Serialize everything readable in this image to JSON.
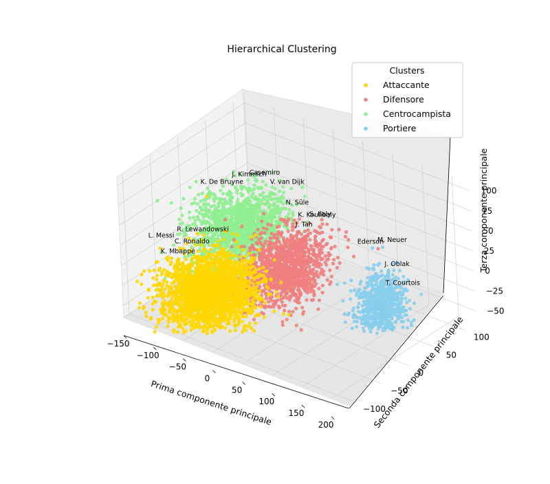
{
  "chart_data": {
    "type": "scatter",
    "title": "Hierarchical Clustering",
    "xlabel": "Prima componente principale",
    "ylabel": "Seconda componente principale",
    "zlabel": "Terza componente principale",
    "xticks": [
      "−150",
      "−100",
      "−50",
      "0",
      "50",
      "100",
      "150",
      "200"
    ],
    "yticks": [
      "−100",
      "−50",
      "0",
      "50",
      "100"
    ],
    "zticks": [
      "−50",
      "−25",
      "0",
      "25",
      "50",
      "75",
      "100"
    ],
    "xlim": [
      -150,
      230
    ],
    "ylim": [
      -110,
      120
    ],
    "zlim": [
      -65,
      110
    ],
    "legend": {
      "title": "Clusters",
      "position": "top-right",
      "entries": [
        "Attaccante",
        "Difensore",
        "Centrocampista",
        "Portiere"
      ]
    },
    "series": [
      {
        "name": "Centrocampista",
        "color": "#90ee90",
        "center": [
          -40,
          -10,
          35
        ],
        "spread": [
          28,
          30,
          18
        ]
      },
      {
        "name": "Difensore",
        "color": "#f08080",
        "center": [
          40,
          -15,
          10
        ],
        "spread": [
          22,
          28,
          20
        ]
      },
      {
        "name": "Portiere",
        "color": "#87ceeb",
        "center": [
          175,
          10,
          -10
        ],
        "spread": [
          14,
          18,
          18
        ]
      },
      {
        "name": "Attaccante",
        "color": "#ffd700",
        "center": [
          -50,
          -60,
          -25
        ],
        "spread": [
          30,
          30,
          18
        ]
      }
    ],
    "annotations": [
      {
        "text": "Casemiro",
        "at": [
          -35,
          5,
          95
        ]
      },
      {
        "text": "V. van Dijk",
        "at": [
          -5,
          10,
          90
        ]
      },
      {
        "text": "J. Kimmich",
        "at": [
          -60,
          0,
          88
        ]
      },
      {
        "text": "N. Süle",
        "at": [
          25,
          5,
          75
        ]
      },
      {
        "text": "K. De Bruyne",
        "at": [
          -105,
          -10,
          70
        ]
      },
      {
        "text": "K. Koulibaly",
        "at": [
          40,
          10,
          62
        ]
      },
      {
        "text": "S. Ilaly",
        "at": [
          55,
          15,
          65
        ]
      },
      {
        "text": "J. Tah",
        "at": [
          40,
          5,
          52
        ]
      },
      {
        "text": "M. Neuer",
        "at": [
          155,
          30,
          55
        ]
      },
      {
        "text": "Ederson",
        "at": [
          130,
          20,
          50
        ]
      },
      {
        "text": "J. Oblak",
        "at": [
          175,
          20,
          35
        ]
      },
      {
        "text": "T. Courtois",
        "at": [
          180,
          15,
          15
        ]
      },
      {
        "text": "R. Lewandowski",
        "at": [
          -120,
          -40,
          20
        ]
      },
      {
        "text": "L. Messi",
        "at": [
          -160,
          -50,
          5
        ]
      },
      {
        "text": "K. Mbappé",
        "at": [
          -135,
          -55,
          -5
        ]
      },
      {
        "text": "C. Ronaldo",
        "at": [
          -130,
          -35,
          0
        ]
      }
    ]
  }
}
